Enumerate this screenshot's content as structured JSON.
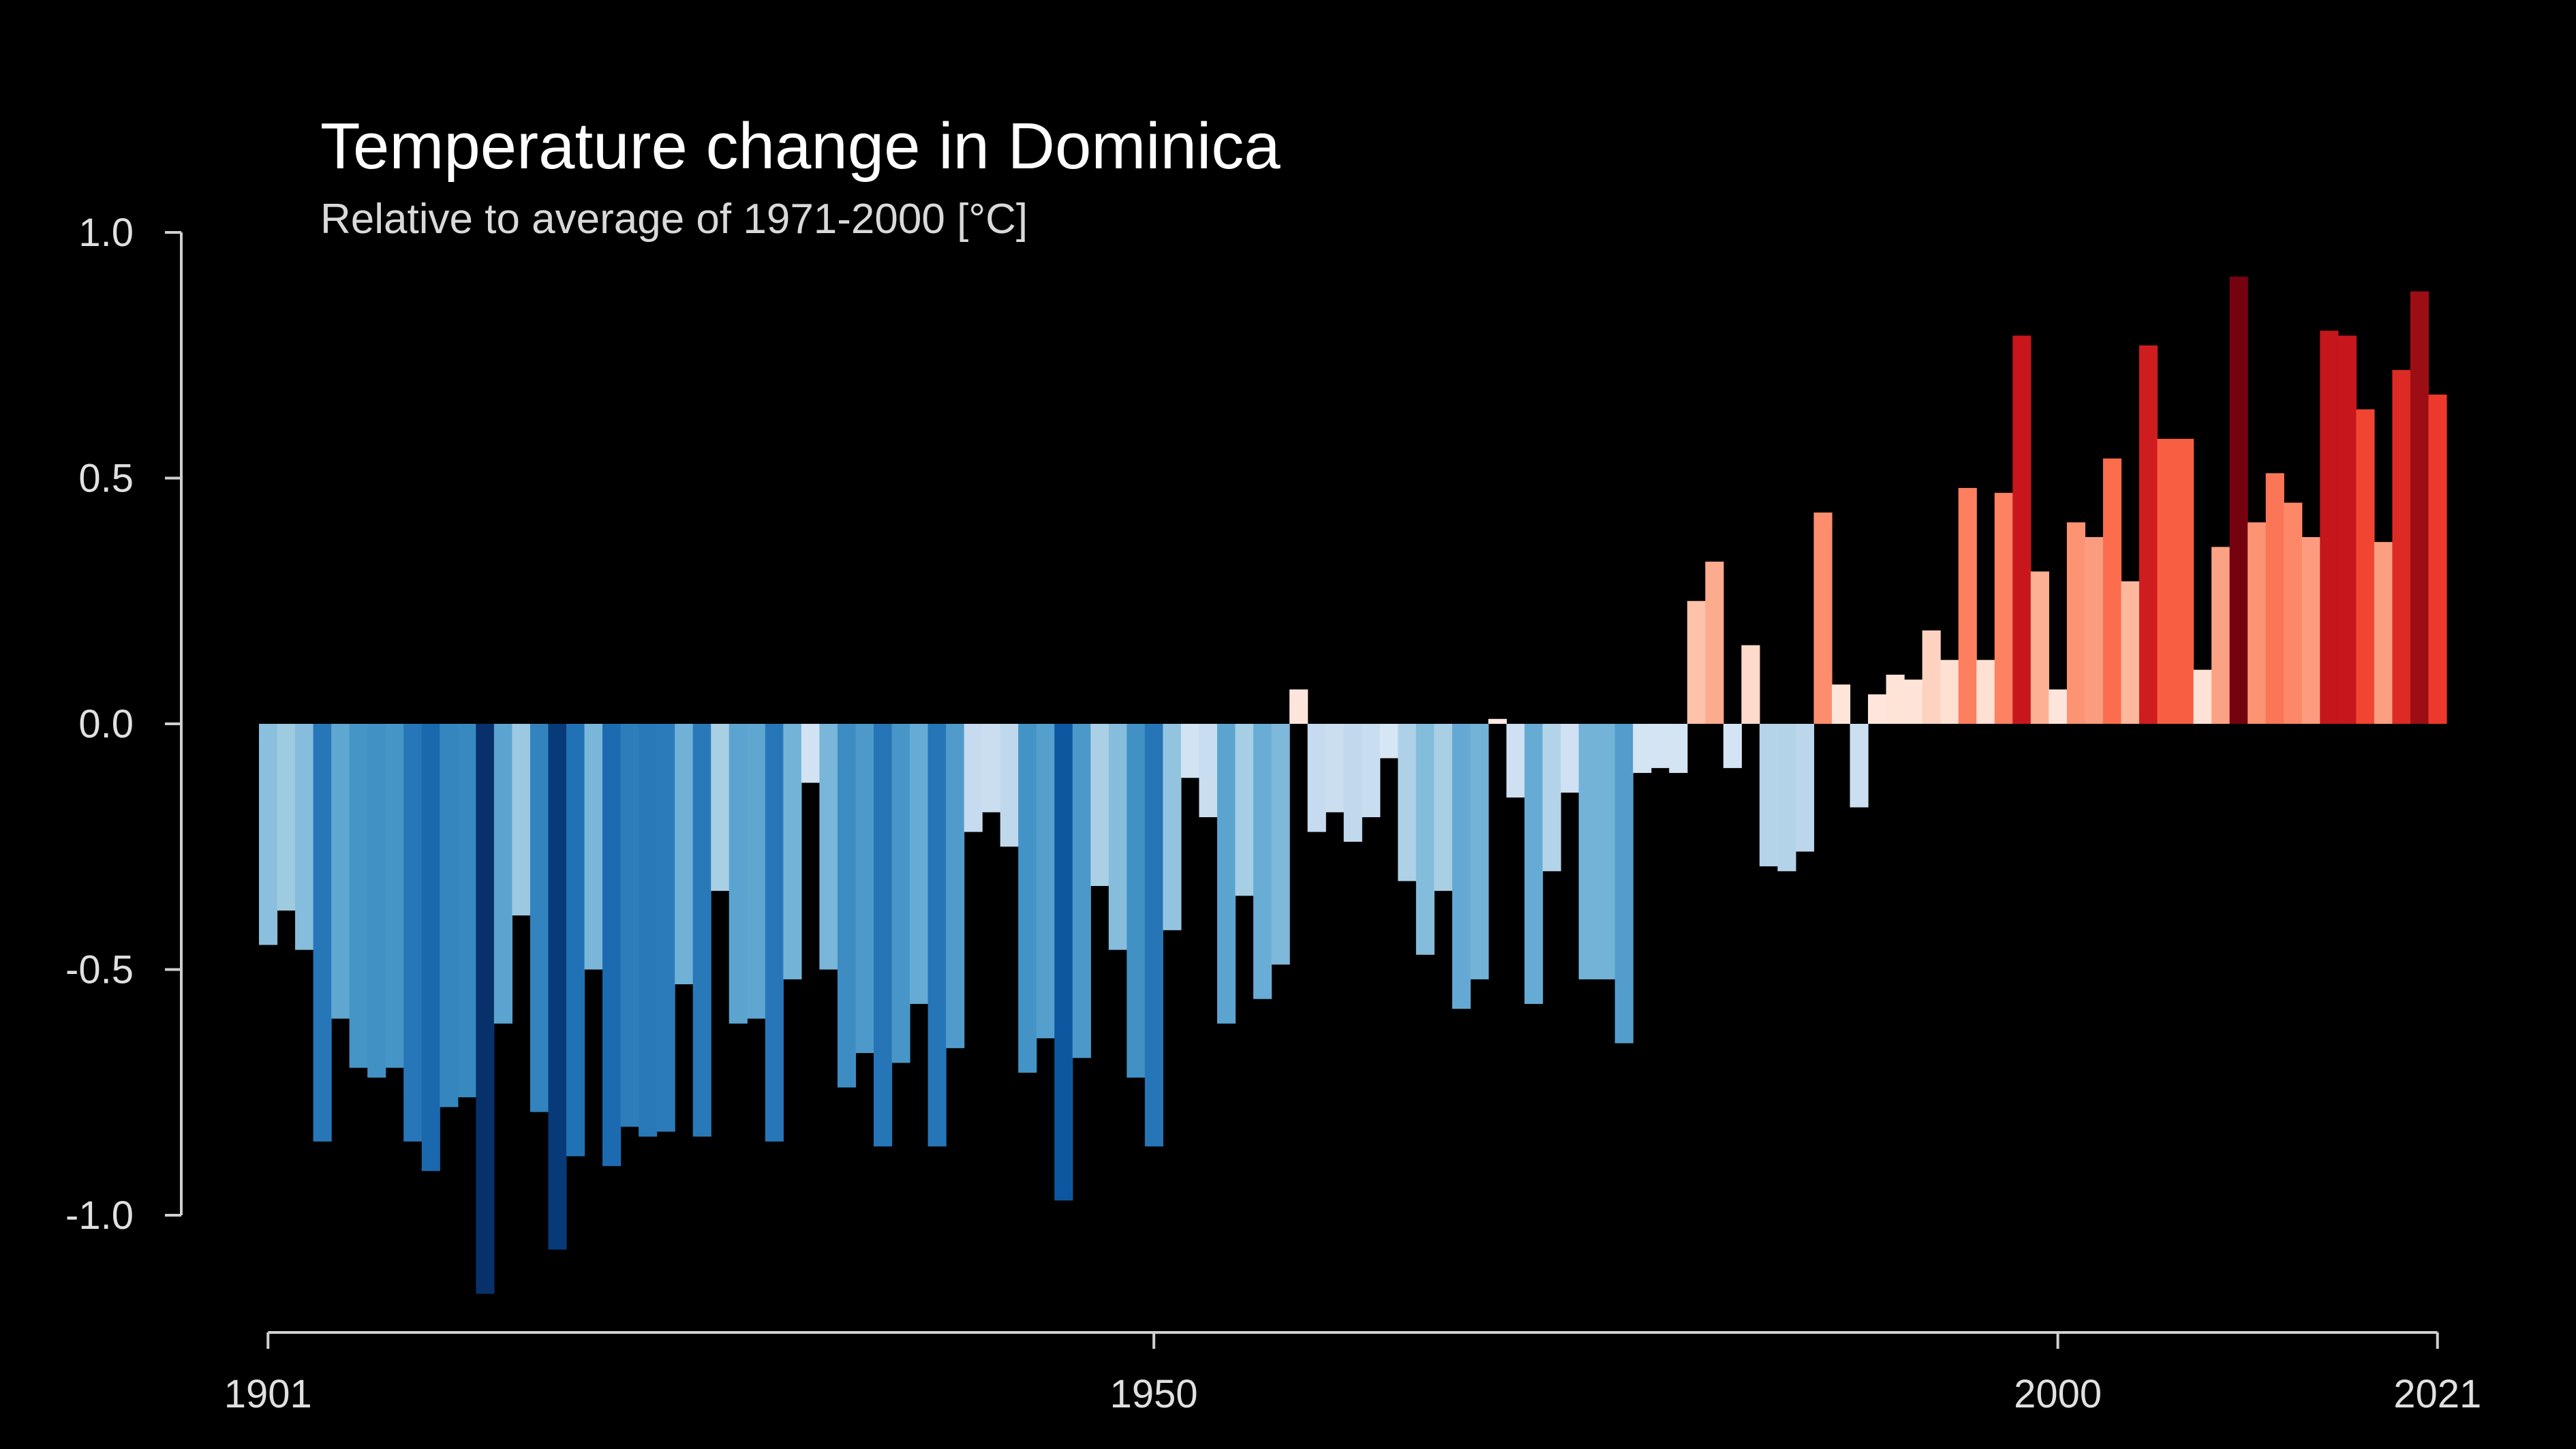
{
  "title": "Temperature change in Dominica",
  "subtitle": "Relative to average of 1971-2000  [°C]",
  "chart_data": {
    "type": "bar",
    "title": "Temperature change in Dominica",
    "subtitle": "Relative to average of 1971-2000  [°C]",
    "xlabel": "",
    "ylabel": "",
    "x_start": 1901,
    "x_end": 2021,
    "x_ticks": [
      "1901",
      "1950",
      "2000",
      "2021"
    ],
    "y_ticks": [
      1.0,
      0.5,
      0.0,
      -0.5,
      -1.0
    ],
    "y_tick_labels": [
      "1.0",
      "0.5",
      "0.0",
      "-0.5",
      "-1.0"
    ],
    "ylim": [
      -1.15,
      1.0
    ],
    "grid": false,
    "legend": "none",
    "color_scale": "blue (below average) to red (above average)",
    "categories": [
      1901,
      1902,
      1903,
      1904,
      1905,
      1906,
      1907,
      1908,
      1909,
      1910,
      1911,
      1912,
      1913,
      1914,
      1915,
      1916,
      1917,
      1918,
      1919,
      1920,
      1921,
      1922,
      1923,
      1924,
      1925,
      1926,
      1927,
      1928,
      1929,
      1930,
      1931,
      1932,
      1933,
      1934,
      1935,
      1936,
      1937,
      1938,
      1939,
      1940,
      1941,
      1942,
      1943,
      1944,
      1945,
      1946,
      1947,
      1948,
      1949,
      1950,
      1951,
      1952,
      1953,
      1954,
      1955,
      1956,
      1957,
      1958,
      1959,
      1960,
      1961,
      1962,
      1963,
      1964,
      1965,
      1966,
      1967,
      1968,
      1969,
      1970,
      1971,
      1972,
      1973,
      1974,
      1975,
      1976,
      1977,
      1978,
      1979,
      1980,
      1981,
      1982,
      1983,
      1984,
      1985,
      1986,
      1987,
      1988,
      1989,
      1990,
      1991,
      1992,
      1993,
      1994,
      1995,
      1996,
      1997,
      1998,
      1999,
      2000,
      2001,
      2002,
      2003,
      2004,
      2005,
      2006,
      2007,
      2008,
      2009,
      2010,
      2011,
      2012,
      2013,
      2014,
      2015,
      2016,
      2017,
      2018,
      2019,
      2020,
      2021
    ],
    "values": [
      -0.45,
      -0.38,
      -0.46,
      -0.85,
      -0.6,
      -0.7,
      -0.72,
      -0.7,
      -0.85,
      -0.91,
      -0.78,
      -0.76,
      -1.16,
      -0.61,
      -0.39,
      -0.79,
      -1.07,
      -0.88,
      -0.5,
      -0.9,
      -0.82,
      -0.84,
      -0.83,
      -0.53,
      -0.84,
      -0.34,
      -0.61,
      -0.6,
      -0.85,
      -0.52,
      -0.12,
      -0.5,
      -0.74,
      -0.67,
      -0.86,
      -0.69,
      -0.57,
      -0.86,
      -0.66,
      -0.22,
      -0.18,
      -0.25,
      -0.71,
      -0.64,
      -0.97,
      -0.68,
      -0.33,
      -0.46,
      -0.72,
      -0.86,
      -0.42,
      -0.11,
      -0.19,
      -0.61,
      -0.35,
      -0.56,
      -0.49,
      0.07,
      -0.22,
      -0.18,
      -0.24,
      -0.19,
      -0.07,
      -0.32,
      -0.47,
      -0.34,
      -0.58,
      -0.52,
      0.01,
      -0.15,
      -0.57,
      -0.3,
      -0.14,
      -0.52,
      -0.52,
      -0.65,
      -0.1,
      -0.09,
      -0.1,
      0.25,
      0.33,
      -0.09,
      0.16,
      -0.29,
      -0.3,
      -0.26,
      0.43,
      0.08,
      -0.17,
      0.06,
      0.1,
      0.09,
      0.19,
      0.13,
      0.48,
      0.13,
      0.47,
      0.79,
      0.31,
      0.07,
      0.41,
      0.38,
      0.54,
      0.29,
      0.77,
      0.58,
      0.58,
      0.11,
      0.36,
      0.91,
      0.41,
      0.51,
      0.45,
      0.38,
      0.8,
      0.79,
      0.64,
      0.37,
      0.72,
      0.88,
      0.67
    ]
  }
}
